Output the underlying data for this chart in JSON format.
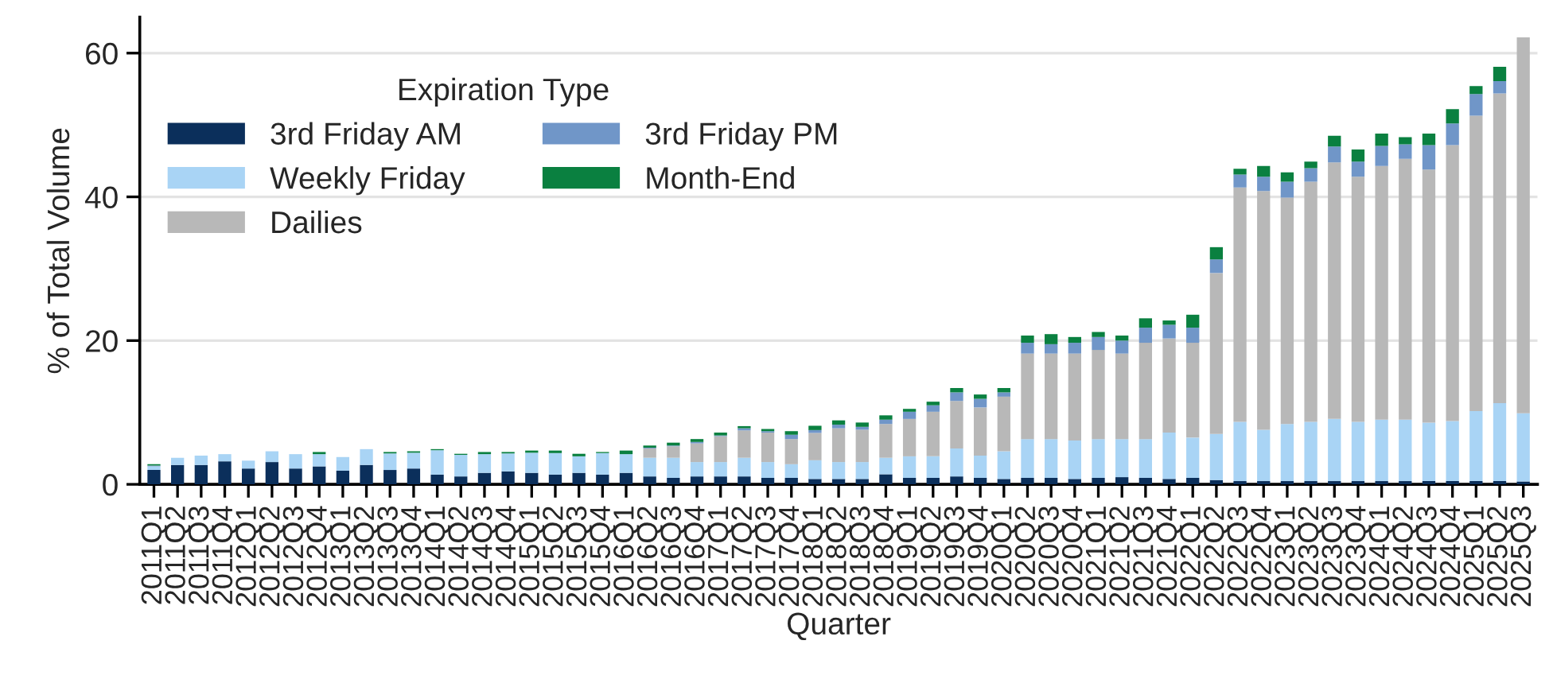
{
  "chart_data": {
    "type": "bar",
    "stacked": true,
    "xlabel": "Quarter",
    "ylabel": "% of Total Volume",
    "legend_title": "Expiration Type",
    "categories": [
      "2011Q1",
      "2011Q2",
      "2011Q3",
      "2011Q4",
      "2012Q1",
      "2012Q2",
      "2012Q3",
      "2012Q4",
      "2013Q1",
      "2013Q2",
      "2013Q3",
      "2013Q4",
      "2014Q1",
      "2014Q2",
      "2014Q3",
      "2014Q4",
      "2015Q1",
      "2015Q2",
      "2015Q3",
      "2015Q4",
      "2016Q1",
      "2016Q2",
      "2016Q3",
      "2016Q4",
      "2017Q1",
      "2017Q2",
      "2017Q3",
      "2017Q4",
      "2018Q1",
      "2018Q2",
      "2018Q3",
      "2018Q4",
      "2019Q1",
      "2019Q2",
      "2019Q3",
      "2019Q4",
      "2020Q1",
      "2020Q2",
      "2020Q3",
      "2020Q4",
      "2021Q1",
      "2021Q2",
      "2021Q3",
      "2021Q4",
      "2022Q1",
      "2022Q2",
      "2022Q3",
      "2022Q4",
      "2023Q1",
      "2023Q2",
      "2023Q3",
      "2023Q4",
      "2024Q1",
      "2024Q2",
      "2024Q3",
      "2024Q4",
      "2025Q1",
      "2025Q2",
      "2025Q3"
    ],
    "series": [
      {
        "name": "3rd Friday AM",
        "color": "#0b2f5b",
        "values": [
          2.0,
          2.7,
          2.7,
          3.2,
          2.2,
          3.1,
          2.2,
          2.5,
          1.9,
          2.7,
          2.0,
          2.2,
          1.35,
          1.1,
          1.6,
          1.8,
          1.6,
          1.35,
          1.6,
          1.35,
          1.6,
          1.1,
          0.9,
          1.1,
          1.1,
          1.1,
          0.9,
          0.9,
          0.75,
          0.75,
          0.75,
          1.4,
          0.9,
          0.9,
          1.1,
          0.9,
          0.75,
          0.9,
          0.9,
          0.75,
          0.9,
          1.0,
          0.9,
          0.75,
          0.9,
          0.6,
          0.45,
          0.45,
          0.45,
          0.45,
          0.45,
          0.45,
          0.45,
          0.45,
          0.45,
          0.45,
          0.45,
          0.45,
          0.4
        ]
      },
      {
        "name": "Weekly Friday",
        "color": "#a9d4f5",
        "values": [
          0.5,
          1.0,
          1.3,
          1.0,
          1.1,
          1.5,
          2.0,
          1.7,
          1.9,
          2.2,
          2.3,
          2.2,
          3.4,
          3.0,
          2.6,
          2.5,
          2.8,
          3.0,
          2.3,
          3.0,
          2.6,
          2.6,
          2.8,
          2.0,
          2.0,
          2.6,
          2.2,
          1.9,
          2.6,
          2.35,
          2.35,
          2.3,
          3.0,
          3.0,
          3.9,
          3.1,
          3.85,
          5.4,
          5.4,
          5.35,
          5.4,
          5.3,
          5.4,
          6.45,
          5.6,
          6.4,
          8.25,
          7.15,
          7.95,
          8.25,
          8.65,
          8.25,
          8.55,
          8.55,
          8.15,
          8.35,
          9.75,
          10.85,
          9.5
        ]
      },
      {
        "name": "Dailies",
        "color": "#b8b8b8",
        "values": [
          0,
          0,
          0,
          0,
          0,
          0,
          0,
          0,
          0,
          0,
          0,
          0,
          0,
          0,
          0,
          0,
          0,
          0,
          0,
          0,
          0,
          1.3,
          1.6,
          2.6,
          3.6,
          3.8,
          4.1,
          3.5,
          3.8,
          4.7,
          4.5,
          4.7,
          5.2,
          6.2,
          6.6,
          6.7,
          7.6,
          11.9,
          11.9,
          12.1,
          12.4,
          11.9,
          13.4,
          13.1,
          13.2,
          22.4,
          32.6,
          33.2,
          31.5,
          33.4,
          35.7,
          34.1,
          35.3,
          36.3,
          35.2,
          38.4,
          41.1,
          43.1,
          52.3
        ]
      },
      {
        "name": "3rd Friday PM",
        "color": "#7096c8",
        "values": [
          0.1,
          0,
          0,
          0,
          0,
          0,
          0,
          0,
          0,
          0,
          0,
          0,
          0,
          0,
          0,
          0,
          0,
          0,
          0,
          0,
          0,
          0.1,
          0.1,
          0.2,
          0.1,
          0.3,
          0.2,
          0.6,
          0.4,
          0.5,
          0.4,
          0.6,
          1.0,
          0.9,
          1.2,
          1.2,
          0.6,
          1.5,
          1.3,
          1.5,
          1.8,
          1.8,
          2.1,
          1.9,
          2.1,
          1.9,
          1.8,
          2.0,
          2.2,
          1.9,
          2.2,
          2.1,
          2.8,
          2.0,
          3.4,
          3.0,
          3.0,
          1.7,
          null
        ]
      },
      {
        "name": "Month-End",
        "color": "#0a8040",
        "values": [
          0.2,
          0,
          0,
          0,
          0,
          0,
          0,
          0.3,
          0,
          0,
          0.2,
          0.2,
          0.15,
          0.15,
          0.3,
          0.2,
          0.3,
          0.35,
          0.35,
          0.15,
          0.5,
          0.3,
          0.4,
          0.4,
          0.4,
          0.3,
          0.3,
          0.5,
          0.6,
          0.6,
          0.6,
          0.6,
          0.4,
          0.5,
          0.6,
          0.6,
          0.6,
          1.0,
          1.4,
          0.8,
          0.7,
          0.7,
          1.3,
          0.6,
          1.8,
          1.7,
          0.8,
          1.5,
          1.3,
          0.9,
          1.5,
          1.7,
          1.7,
          1.0,
          1.6,
          2.0,
          1.1,
          2.0,
          null
        ]
      }
    ],
    "ylim": [
      0,
      65
    ],
    "yticks": [
      0,
      20,
      40,
      60
    ],
    "grid": "y",
    "legend": "top left"
  }
}
